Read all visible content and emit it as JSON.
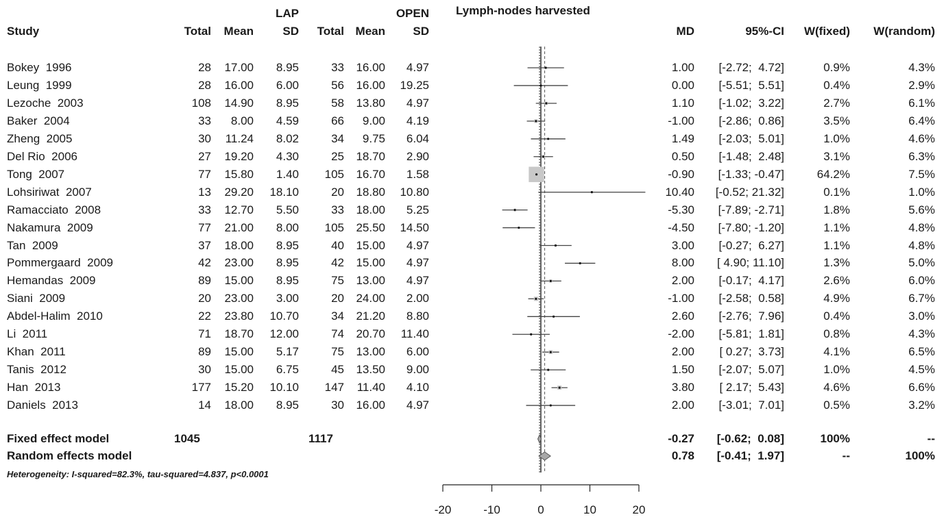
{
  "chart_data": {
    "type": "forest",
    "title": "Lymph-nodes harvested",
    "group_labels": {
      "lap": "LAP",
      "open": "OPEN"
    },
    "headers": {
      "study": "Study",
      "lap_total": "Total",
      "lap_mean": "Mean",
      "lap_sd": "SD",
      "open_total": "Total",
      "open_mean": "Mean",
      "open_sd": "SD",
      "md": "MD",
      "ci": "95%-CI",
      "w_fixed": "W(fixed)",
      "w_random": "W(random)"
    },
    "studies": [
      {
        "study": "Bokey  1996",
        "lap_total": "28",
        "lap_mean": "17.00",
        "lap_sd": "8.95",
        "open_total": "33",
        "open_mean": "16.00",
        "open_sd": "4.97",
        "md": "1.00",
        "ci": "[-2.72;  4.72]",
        "w_fixed": "0.9%",
        "w_random": "4.3%",
        "md_val": 1.0,
        "lo": -2.72,
        "hi": 4.72,
        "wf": 0.9
      },
      {
        "study": "Leung  1999",
        "lap_total": "28",
        "lap_mean": "16.00",
        "lap_sd": "6.00",
        "open_total": "56",
        "open_mean": "16.00",
        "open_sd": "19.25",
        "md": "0.00",
        "ci": "[-5.51;  5.51]",
        "w_fixed": "0.4%",
        "w_random": "2.9%",
        "md_val": 0.0,
        "lo": -5.51,
        "hi": 5.51,
        "wf": 0.4
      },
      {
        "study": "Lezoche  2003",
        "lap_total": "108",
        "lap_mean": "14.90",
        "lap_sd": "8.95",
        "open_total": "58",
        "open_mean": "13.80",
        "open_sd": "4.97",
        "md": "1.10",
        "ci": "[-1.02;  3.22]",
        "w_fixed": "2.7%",
        "w_random": "6.1%",
        "md_val": 1.1,
        "lo": -1.02,
        "hi": 3.22,
        "wf": 2.7
      },
      {
        "study": "Baker  2004",
        "lap_total": "33",
        "lap_mean": "8.00",
        "lap_sd": "4.59",
        "open_total": "66",
        "open_mean": "9.00",
        "open_sd": "4.19",
        "md": "-1.00",
        "ci": "[-2.86;  0.86]",
        "w_fixed": "3.5%",
        "w_random": "6.4%",
        "md_val": -1.0,
        "lo": -2.86,
        "hi": 0.86,
        "wf": 3.5
      },
      {
        "study": "Zheng  2005",
        "lap_total": "30",
        "lap_mean": "11.24",
        "lap_sd": "8.02",
        "open_total": "34",
        "open_mean": "9.75",
        "open_sd": "6.04",
        "md": "1.49",
        "ci": "[-2.03;  5.01]",
        "w_fixed": "1.0%",
        "w_random": "4.6%",
        "md_val": 1.49,
        "lo": -2.03,
        "hi": 5.01,
        "wf": 1.0
      },
      {
        "study": "Del Rio  2006",
        "lap_total": "27",
        "lap_mean": "19.20",
        "lap_sd": "4.30",
        "open_total": "25",
        "open_mean": "18.70",
        "open_sd": "2.90",
        "md": "0.50",
        "ci": "[-1.48;  2.48]",
        "w_fixed": "3.1%",
        "w_random": "6.3%",
        "md_val": 0.5,
        "lo": -1.48,
        "hi": 2.48,
        "wf": 3.1
      },
      {
        "study": "Tong  2007",
        "lap_total": "77",
        "lap_mean": "15.80",
        "lap_sd": "1.40",
        "open_total": "105",
        "open_mean": "16.70",
        "open_sd": "1.58",
        "md": "-0.90",
        "ci": "[-1.33; -0.47]",
        "w_fixed": "64.2%",
        "w_random": "7.5%",
        "md_val": -0.9,
        "lo": -1.33,
        "hi": -0.47,
        "wf": 64.2
      },
      {
        "study": "Lohsiriwat  2007",
        "lap_total": "13",
        "lap_mean": "29.20",
        "lap_sd": "18.10",
        "open_total": "20",
        "open_mean": "18.80",
        "open_sd": "10.80",
        "md": "10.40",
        "ci": "[-0.52; 21.32]",
        "w_fixed": "0.1%",
        "w_random": "1.0%",
        "md_val": 10.4,
        "lo": -0.52,
        "hi": 21.32,
        "wf": 0.1
      },
      {
        "study": "Ramacciato  2008",
        "lap_total": "33",
        "lap_mean": "12.70",
        "lap_sd": "5.50",
        "open_total": "33",
        "open_mean": "18.00",
        "open_sd": "5.25",
        "md": "-5.30",
        "ci": "[-7.89; -2.71]",
        "w_fixed": "1.8%",
        "w_random": "5.6%",
        "md_val": -5.3,
        "lo": -7.89,
        "hi": -2.71,
        "wf": 1.8
      },
      {
        "study": "Nakamura  2009",
        "lap_total": "77",
        "lap_mean": "21.00",
        "lap_sd": "8.00",
        "open_total": "105",
        "open_mean": "25.50",
        "open_sd": "14.50",
        "md": "-4.50",
        "ci": "[-7.80; -1.20]",
        "w_fixed": "1.1%",
        "w_random": "4.8%",
        "md_val": -4.5,
        "lo": -7.8,
        "hi": -1.2,
        "wf": 1.1
      },
      {
        "study": "Tan  2009",
        "lap_total": "37",
        "lap_mean": "18.00",
        "lap_sd": "8.95",
        "open_total": "40",
        "open_mean": "15.00",
        "open_sd": "4.97",
        "md": "3.00",
        "ci": "[-0.27;  6.27]",
        "w_fixed": "1.1%",
        "w_random": "4.8%",
        "md_val": 3.0,
        "lo": -0.27,
        "hi": 6.27,
        "wf": 1.1
      },
      {
        "study": "Pommergaard  2009",
        "lap_total": "42",
        "lap_mean": "23.00",
        "lap_sd": "8.95",
        "open_total": "42",
        "open_mean": "15.00",
        "open_sd": "4.97",
        "md": "8.00",
        "ci": "[ 4.90; 11.10]",
        "w_fixed": "1.3%",
        "w_random": "5.0%",
        "md_val": 8.0,
        "lo": 4.9,
        "hi": 11.1,
        "wf": 1.3
      },
      {
        "study": "Hemandas  2009",
        "lap_total": "89",
        "lap_mean": "15.00",
        "lap_sd": "8.95",
        "open_total": "75",
        "open_mean": "13.00",
        "open_sd": "4.97",
        "md": "2.00",
        "ci": "[-0.17;  4.17]",
        "w_fixed": "2.6%",
        "w_random": "6.0%",
        "md_val": 2.0,
        "lo": -0.17,
        "hi": 4.17,
        "wf": 2.6
      },
      {
        "study": "Siani  2009",
        "lap_total": "20",
        "lap_mean": "23.00",
        "lap_sd": "3.00",
        "open_total": "20",
        "open_mean": "24.00",
        "open_sd": "2.00",
        "md": "-1.00",
        "ci": "[-2.58;  0.58]",
        "w_fixed": "4.9%",
        "w_random": "6.7%",
        "md_val": -1.0,
        "lo": -2.58,
        "hi": 0.58,
        "wf": 4.9
      },
      {
        "study": "Abdel-Halim  2010",
        "lap_total": "22",
        "lap_mean": "23.80",
        "lap_sd": "10.70",
        "open_total": "34",
        "open_mean": "21.20",
        "open_sd": "8.80",
        "md": "2.60",
        "ci": "[-2.76;  7.96]",
        "w_fixed": "0.4%",
        "w_random": "3.0%",
        "md_val": 2.6,
        "lo": -2.76,
        "hi": 7.96,
        "wf": 0.4
      },
      {
        "study": "Li  2011",
        "lap_total": "71",
        "lap_mean": "18.70",
        "lap_sd": "12.00",
        "open_total": "74",
        "open_mean": "20.70",
        "open_sd": "11.40",
        "md": "-2.00",
        "ci": "[-5.81;  1.81]",
        "w_fixed": "0.8%",
        "w_random": "4.3%",
        "md_val": -2.0,
        "lo": -5.81,
        "hi": 1.81,
        "wf": 0.8
      },
      {
        "study": "Khan  2011",
        "lap_total": "89",
        "lap_mean": "15.00",
        "lap_sd": "5.17",
        "open_total": "75",
        "open_mean": "13.00",
        "open_sd": "6.00",
        "md": "2.00",
        "ci": "[ 0.27;  3.73]",
        "w_fixed": "4.1%",
        "w_random": "6.5%",
        "md_val": 2.0,
        "lo": 0.27,
        "hi": 3.73,
        "wf": 4.1
      },
      {
        "study": "Tanis  2012",
        "lap_total": "30",
        "lap_mean": "15.00",
        "lap_sd": "6.75",
        "open_total": "45",
        "open_mean": "13.50",
        "open_sd": "9.00",
        "md": "1.50",
        "ci": "[-2.07;  5.07]",
        "w_fixed": "1.0%",
        "w_random": "4.5%",
        "md_val": 1.5,
        "lo": -2.07,
        "hi": 5.07,
        "wf": 1.0
      },
      {
        "study": "Han  2013",
        "lap_total": "177",
        "lap_mean": "15.20",
        "lap_sd": "10.10",
        "open_total": "147",
        "open_mean": "11.40",
        "open_sd": "4.10",
        "md": "3.80",
        "ci": "[ 2.17;  5.43]",
        "w_fixed": "4.6%",
        "w_random": "6.6%",
        "md_val": 3.8,
        "lo": 2.17,
        "hi": 5.43,
        "wf": 4.6
      },
      {
        "study": "Daniels  2013",
        "lap_total": "14",
        "lap_mean": "18.00",
        "lap_sd": "8.95",
        "open_total": "30",
        "open_mean": "16.00",
        "open_sd": "4.97",
        "md": "2.00",
        "ci": "[-3.01;  7.01]",
        "w_fixed": "0.5%",
        "w_random": "3.2%",
        "md_val": 2.0,
        "lo": -3.01,
        "hi": 7.01,
        "wf": 0.5
      }
    ],
    "summaries": [
      {
        "label": "Fixed effect model",
        "lap_total": "1045",
        "open_total": "1117",
        "md": "-0.27",
        "ci": "[-0.62;  0.08]",
        "w_fixed": "100%",
        "w_random": "--",
        "md_val": -0.27,
        "lo": -0.62,
        "hi": 0.08
      },
      {
        "label": "Random effects model",
        "lap_total": "",
        "open_total": "",
        "md": "0.78",
        "ci": "[-0.41;  1.97]",
        "w_fixed": "--",
        "w_random": "100%",
        "md_val": 0.78,
        "lo": -0.41,
        "hi": 1.97
      }
    ],
    "heterogeneity": "Heterogeneity: I-squared=82.3%, tau-squared=4.837, p<0.0001",
    "xlim": [
      -20,
      20
    ],
    "x_ticks": [
      -20,
      -10,
      0,
      10,
      20
    ],
    "x_tick_labels": [
      "-20",
      "-10",
      "0",
      "10",
      "20"
    ],
    "colors": {
      "text": "#1a1a1a",
      "square": "#c8c8c8",
      "diamond": "#a8a8a8",
      "line": "#444444"
    }
  }
}
